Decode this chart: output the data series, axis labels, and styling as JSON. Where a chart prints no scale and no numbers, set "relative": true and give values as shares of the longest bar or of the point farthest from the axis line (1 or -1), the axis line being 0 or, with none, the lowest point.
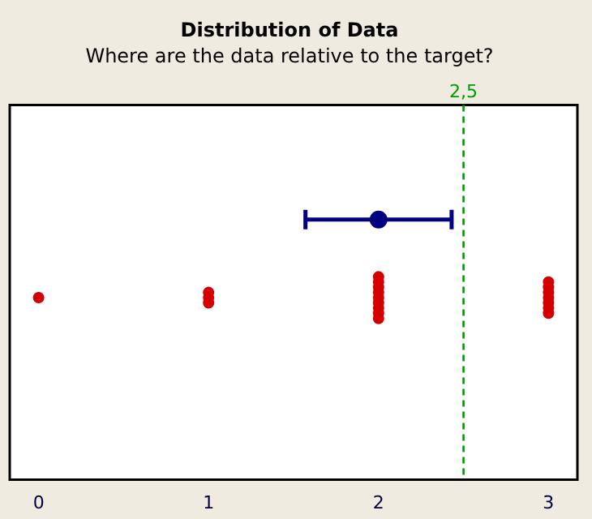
{
  "chart_data": {
    "type": "scatter",
    "title": "Distribution of Data",
    "subtitle": "Where are the data relative to the target?",
    "relative": true,
    "tick_labels": "x",
    "xlim": [
      -0.17,
      3.17
    ],
    "xticks": [
      0,
      1,
      2,
      3
    ],
    "marker": "circle",
    "series": [
      {
        "color": "#d40000",
        "x": [
          0,
          1,
          1,
          1,
          2,
          2,
          2,
          2,
          2,
          2,
          2,
          2,
          2,
          3,
          3,
          3,
          3,
          3,
          3,
          3
        ],
        "values": [
          0.7,
          0.68,
          0.7,
          0.72,
          0.62,
          0.64,
          0.66,
          0.68,
          0.7,
          0.72,
          0.74,
          0.76,
          0.78,
          0.64,
          0.66,
          0.68,
          0.7,
          0.72,
          0.74,
          0.76
        ]
      },
      {
        "color": "#000080",
        "x": [
          2
        ],
        "values": [
          1
        ],
        "xerrors": [
          [
            1.57,
            2.43
          ]
        ]
      }
    ],
    "ref_lines": [
      {
        "axis": "x",
        "value": 2.5,
        "label": "2,5",
        "color": "#009900",
        "line_style": "dashed"
      }
    ]
  }
}
